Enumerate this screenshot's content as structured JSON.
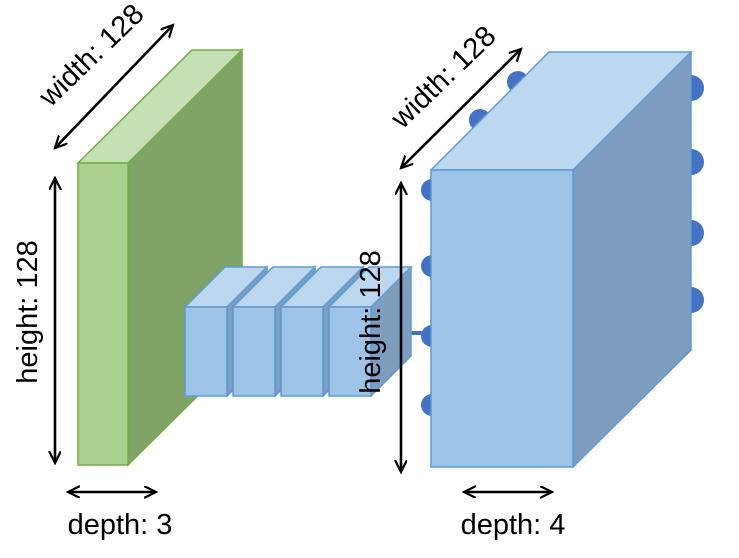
{
  "colors": {
    "green_front": "#a9d08e",
    "green_side": "#7fa466",
    "green_top": "#c5e0b4",
    "green_edge": "#70ad47",
    "blue_front": "#9dc3e6",
    "blue_side": "#7f9dbf",
    "blue_top": "#bdd7ee",
    "blue_edge": "#5b9bd5",
    "node_fill": "#4472c4",
    "arrow": "#000000"
  },
  "input_block": {
    "width_label": "width: 128",
    "height_label": "height: 128",
    "depth_label": "depth: 3"
  },
  "filters": {
    "count": 4
  },
  "output_block": {
    "width_label": "width: 128",
    "height_label": "height: 128",
    "depth_label": "depth: 4"
  }
}
